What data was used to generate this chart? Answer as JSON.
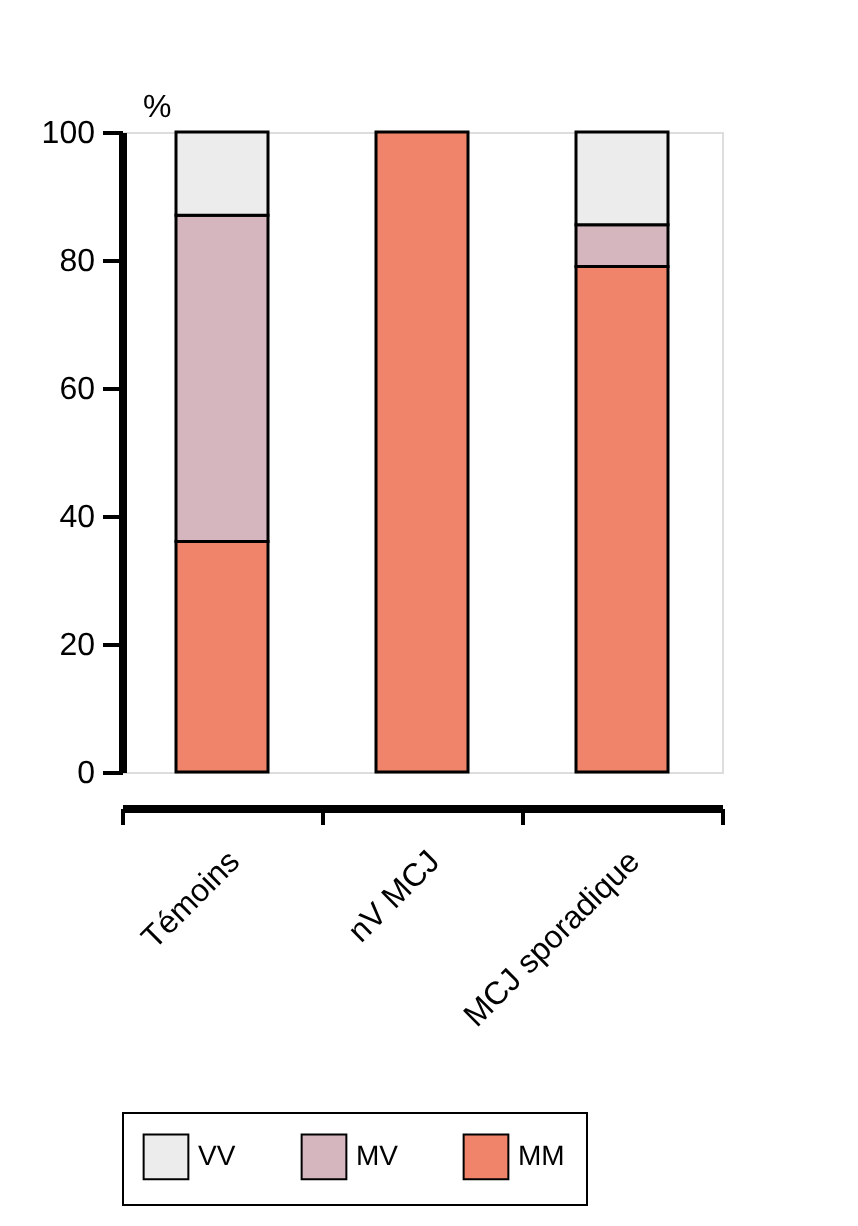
{
  "chart_data": {
    "type": "bar",
    "stacked": true,
    "ylabel": "%",
    "categories": [
      "Témoins",
      "nV MCJ",
      "MCJ sporadique"
    ],
    "series": [
      {
        "name": "MM",
        "color": "#ef846b",
        "values": [
          36,
          100,
          79
        ]
      },
      {
        "name": "MV",
        "color": "#d5b6be",
        "values": [
          51,
          null,
          6.5
        ]
      },
      {
        "name": "VV",
        "color": "#ececec",
        "values": [
          13,
          null,
          14.5
        ]
      }
    ],
    "ylim": [
      0,
      100
    ],
    "yticks": [
      0,
      20,
      40,
      60,
      80,
      100
    ],
    "grid": false,
    "legend": "bottom"
  }
}
